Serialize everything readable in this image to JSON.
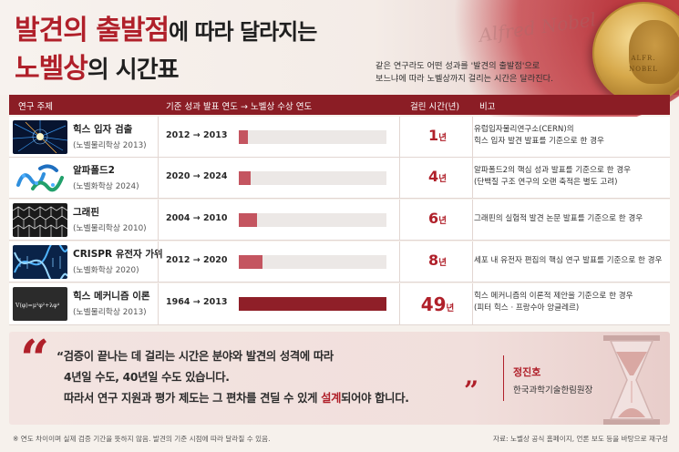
{
  "header": {
    "title_red_1": "발견의 출발점",
    "title_rest_1": "에 따라 달라지는",
    "title_red_2": "노벨상",
    "title_rest_2": "의 시간표",
    "subtitle_line1": "같은 연구라도 어떤 성과를 '발견의 출발점'으로",
    "subtitle_line2": "보느냐에 따라 노벨상까지 걸리는 시간은 달라진다.",
    "signature": "Alfred Nobel",
    "medal_text_1": "ALFR.",
    "medal_text_2": "NOBEL"
  },
  "table": {
    "columns": [
      "연구 주제",
      "기준 성과 발표 연도 → 노벨상 수상 연도",
      "걸린 시간(년)",
      "비고"
    ],
    "unit": "년",
    "max_years": 49,
    "rows": [
      {
        "topic": "힉스 입자 검출",
        "prize": "(노벨물리학상 2013)",
        "years_text": "2012 → 2013",
        "duration": 1,
        "duration_text": "1",
        "note": "유럽입자물리연구소(CERN)의\n힉스 입자 발견 발표를 기준으로 한 경우",
        "image": "particle-collision-image"
      },
      {
        "topic": "알파폴드2",
        "prize": "(노벨화학상 2024)",
        "years_text": "2020 → 2024",
        "duration": 4,
        "duration_text": "4",
        "note": "알파폴드2의 핵심 성과 발표를 기준으로 한 경우\n(단백질 구조 연구의 오랜 축적은 별도 고려)",
        "image": "protein-structure-image"
      },
      {
        "topic": "그래핀",
        "prize": "(노벨물리학상 2010)",
        "years_text": "2004 → 2010",
        "duration": 6,
        "duration_text": "6",
        "note": "그래핀의 실험적 발견 논문 발표를 기준으로 한 경우",
        "image": "graphene-lattice-image"
      },
      {
        "topic": "CRISPR 유전자 가위",
        "prize": "(노벨화학상 2020)",
        "years_text": "2012 → 2020",
        "duration": 8,
        "duration_text": "8",
        "note": "세포 내 유전자 편집의 핵심 연구 발표를 기준으로 한 경우",
        "image": "dna-helix-image"
      },
      {
        "topic": "힉스 메커니즘 이론",
        "prize": "(노벨물리학상 2013)",
        "years_text": "1964 → 2013",
        "duration": 49,
        "duration_text": "49",
        "note": "힉스 메커니즘의 이론적 제안을 기준으로 한 경우\n(피터 힉스 · 프랑수아 앙글레르)",
        "image": "chalkboard-formula-image",
        "formula": "V(φ)=μ²φ²+λφ⁴"
      }
    ]
  },
  "quote": {
    "line1": "“검증이 끝나는 데 걸리는 시간은 분야와 발견의 성격에 따라",
    "line2": "4년일 수도, 40년일 수도 있습니다.",
    "line3_a": "따라서 연구 지원과 평가 제도는 그 편차를 견딜 수 있게 ",
    "line3_b": "설계",
    "line3_c": "되어야 합니다.",
    "speaker": "정진호",
    "role": "한국과학기술한림원장"
  },
  "footer": {
    "note": "※ 연도 차이이며 실제 검증 기간을 뜻하지 않음. 발견의 기준 시점에 따라 달라질 수 있음.",
    "source": "자료: 노벨상 공식 홈페이지, 언론 보도 등을 바탕으로 재구성"
  },
  "colors": {
    "accent": "#b0202a",
    "header_bar": "#8b1d25",
    "bar_light": "#c45560",
    "bar_dark": "#8f1f28"
  }
}
